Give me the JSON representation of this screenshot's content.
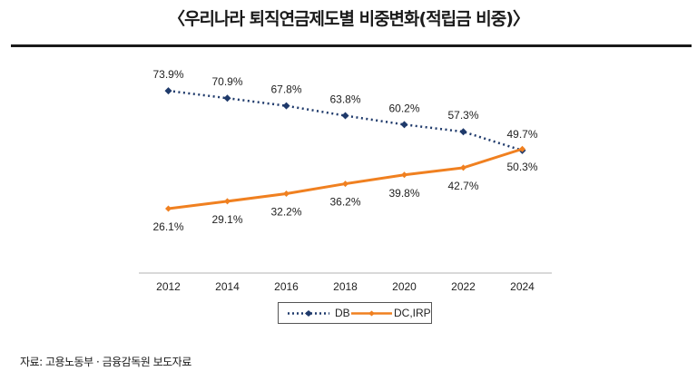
{
  "header": {
    "title": "〈우리나라 퇴직연금제도별 비중변화(적립금 비중)〉"
  },
  "footer": {
    "source": "자료: 고용노동부 · 금융감독원 보도자료"
  },
  "colors": {
    "db": "#1F3A6B",
    "dc": "#F08020",
    "axis": "#D9D9D9"
  },
  "chart_data": {
    "type": "line",
    "title": "〈우리나라 퇴직연금제도별 비중변화(적립금 비중)〉",
    "xlabel": "",
    "ylabel": "",
    "x": [
      "2012",
      "2014",
      "2016",
      "2018",
      "2020",
      "2022",
      "2024"
    ],
    "ylim": [
      0,
      80
    ],
    "grid": false,
    "legend_position": "bottom",
    "series": [
      {
        "name": "DB",
        "style": "dotted-with-diamond-markers",
        "values": [
          73.9,
          70.9,
          67.8,
          63.8,
          60.2,
          57.3,
          49.7
        ],
        "labels": [
          "73.9%",
          "70.9%",
          "67.8%",
          "63.8%",
          "60.2%",
          "57.3%",
          "49.7%"
        ]
      },
      {
        "name": "DC,IRP",
        "style": "solid-with-diamond-markers",
        "values": [
          26.1,
          29.1,
          32.2,
          36.2,
          39.8,
          42.7,
          50.3
        ],
        "labels": [
          "26.1%",
          "29.1%",
          "32.2%",
          "36.2%",
          "39.8%",
          "42.7%",
          "50.3%"
        ]
      }
    ]
  }
}
